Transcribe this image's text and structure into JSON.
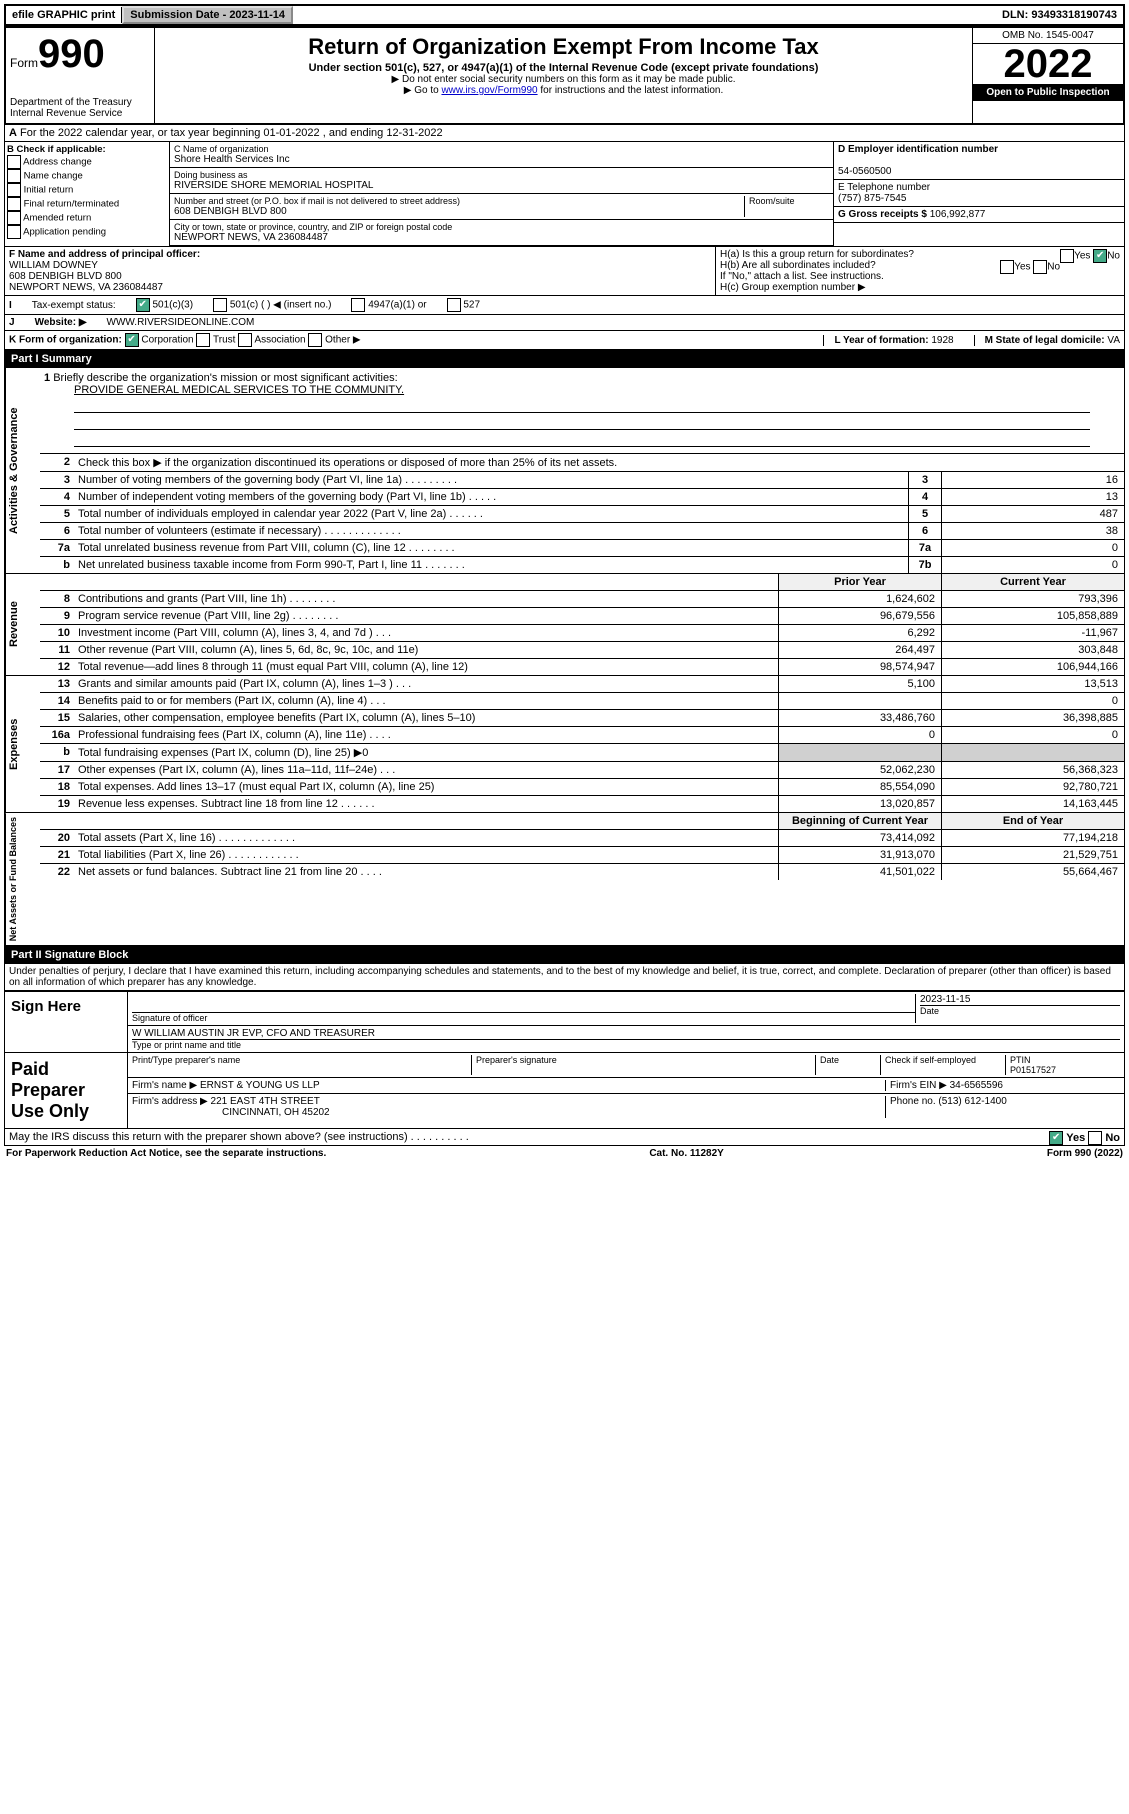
{
  "topbar": {
    "efile": "efile GRAPHIC print",
    "sub_date_label": "Submission Date - 2023-11-14",
    "dln": "DLN: 93493318190743"
  },
  "header": {
    "form_label": "Form",
    "form_num": "990",
    "dept": "Department of the Treasury",
    "irs": "Internal Revenue Service",
    "title": "Return of Organization Exempt From Income Tax",
    "subtitle": "Under section 501(c), 527, or 4947(a)(1) of the Internal Revenue Code (except private foundations)",
    "note1": "▶ Do not enter social security numbers on this form as it may be made public.",
    "note2_pre": "▶ Go to ",
    "note2_link": "www.irs.gov/Form990",
    "note2_post": " for instructions and the latest information.",
    "omb": "OMB No. 1545-0047",
    "year": "2022",
    "open": "Open to Public Inspection"
  },
  "period": "For the 2022 calendar year, or tax year beginning 01-01-2022   , and ending 12-31-2022",
  "B": {
    "label": "B Check if applicable:",
    "items": [
      "Address change",
      "Name change",
      "Initial return",
      "Final return/terminated",
      "Amended return",
      "Application pending"
    ]
  },
  "C": {
    "name_label": "C Name of organization",
    "name": "Shore Health Services Inc",
    "dba_label": "Doing business as",
    "dba": "RIVERSIDE SHORE MEMORIAL HOSPITAL",
    "addr_label": "Number and street (or P.O. box if mail is not delivered to street address)",
    "addr": "608 DENBIGH BLVD 800",
    "room_label": "Room/suite",
    "city_label": "City or town, state or province, country, and ZIP or foreign postal code",
    "city": "NEWPORT NEWS, VA  236084487"
  },
  "D": {
    "label": "D Employer identification number",
    "value": "54-0560500"
  },
  "E": {
    "label": "E Telephone number",
    "value": "(757) 875-7545"
  },
  "G": {
    "label": "G Gross receipts $",
    "value": "106,992,877"
  },
  "F": {
    "label": "F Name and address of principal officer:",
    "name": "WILLIAM DOWNEY",
    "addr1": "608 DENBIGH BLVD 800",
    "addr2": "NEWPORT NEWS, VA  236084487"
  },
  "H": {
    "a": "H(a)  Is this a group return for subordinates?",
    "a_yes": "Yes",
    "a_no": "No",
    "b": "H(b)  Are all subordinates included?",
    "b_yes": "Yes",
    "b_no": "No",
    "b_note": "If \"No,\" attach a list. See instructions.",
    "c": "H(c)  Group exemption number ▶"
  },
  "I": {
    "label": "Tax-exempt status:",
    "opt1": "501(c)(3)",
    "opt2": "501(c) (  ) ◀ (insert no.)",
    "opt3": "4947(a)(1) or",
    "opt4": "527"
  },
  "J": {
    "label": "Website: ▶",
    "value": "WWW.RIVERSIDEONLINE.COM"
  },
  "K": {
    "label": "K Form of organization:",
    "opts": [
      "Corporation",
      "Trust",
      "Association",
      "Other ▶"
    ]
  },
  "L": {
    "label": "L Year of formation:",
    "value": "1928"
  },
  "M": {
    "label": "M State of legal domicile:",
    "value": "VA"
  },
  "partI": {
    "header": "Part I     Summary",
    "q1": "Briefly describe the organization's mission or most significant activities:",
    "mission": "PROVIDE GENERAL MEDICAL SERVICES TO THE COMMUNITY.",
    "q2": "Check this box ▶      if the organization discontinued its operations or disposed of more than 25% of its net assets.",
    "sides": {
      "gov": "Activities & Governance",
      "rev": "Revenue",
      "exp": "Expenses",
      "net": "Net Assets or Fund Balances"
    },
    "single_col": [
      {
        "n": "3",
        "d": "Number of voting members of the governing body (Part VI, line 1a)   .    .    .    .    .    .    .    .    .",
        "b": "3",
        "v": "16"
      },
      {
        "n": "4",
        "d": "Number of independent voting members of the governing body (Part VI, line 1b)  .    .    .    .    .",
        "b": "4",
        "v": "13"
      },
      {
        "n": "5",
        "d": "Total number of individuals employed in calendar year 2022 (Part V, line 2a)   .    .    .    .    .    .",
        "b": "5",
        "v": "487"
      },
      {
        "n": "6",
        "d": "Total number of volunteers (estimate if necessary)   .    .    .    .    .    .    .    .    .    .    .    .    .",
        "b": "6",
        "v": "38"
      },
      {
        "n": "7a",
        "d": "Total unrelated business revenue from Part VIII, column (C), line 12  .    .    .    .    .    .    .    .",
        "b": "7a",
        "v": "0"
      },
      {
        "n": "b",
        "d": "Net unrelated business taxable income from Form 990-T, Part I, line 11   .    .    .    .    .    .    .",
        "b": "7b",
        "v": "0"
      }
    ],
    "hdr_prior": "Prior Year",
    "hdr_curr": "Current Year",
    "rev": [
      {
        "n": "8",
        "d": "Contributions and grants (Part VIII, line 1h)   .    .    .    .    .    .    .    .",
        "p": "1,624,602",
        "c": "793,396"
      },
      {
        "n": "9",
        "d": "Program service revenue (Part VIII, line 2g)   .    .    .    .    .    .    .    .",
        "p": "96,679,556",
        "c": "105,858,889"
      },
      {
        "n": "10",
        "d": "Investment income (Part VIII, column (A), lines 3, 4, and 7d )  .    .    .",
        "p": "6,292",
        "c": "-11,967"
      },
      {
        "n": "11",
        "d": "Other revenue (Part VIII, column (A), lines 5, 6d, 8c, 9c, 10c, and 11e)",
        "p": "264,497",
        "c": "303,848"
      },
      {
        "n": "12",
        "d": "Total revenue—add lines 8 through 11 (must equal Part VIII, column (A), line 12)",
        "p": "98,574,947",
        "c": "106,944,166"
      }
    ],
    "exp": [
      {
        "n": "13",
        "d": "Grants and similar amounts paid (Part IX, column (A), lines 1–3 )  .    .    .",
        "p": "5,100",
        "c": "13,513"
      },
      {
        "n": "14",
        "d": "Benefits paid to or for members (Part IX, column (A), line 4)  .    .    .",
        "p": "",
        "c": "0"
      },
      {
        "n": "15",
        "d": "Salaries, other compensation, employee benefits (Part IX, column (A), lines 5–10)",
        "p": "33,486,760",
        "c": "36,398,885"
      },
      {
        "n": "16a",
        "d": "Professional fundraising fees (Part IX, column (A), line 11e)  .    .    .    .",
        "p": "0",
        "c": "0"
      },
      {
        "n": "b",
        "d": "Total fundraising expenses (Part IX, column (D), line 25) ▶0",
        "p": "GRAY",
        "c": "GRAY"
      },
      {
        "n": "17",
        "d": "Other expenses (Part IX, column (A), lines 11a–11d, 11f–24e)  .    .    .",
        "p": "52,062,230",
        "c": "56,368,323"
      },
      {
        "n": "18",
        "d": "Total expenses. Add lines 13–17 (must equal Part IX, column (A), line 25)",
        "p": "85,554,090",
        "c": "92,780,721"
      },
      {
        "n": "19",
        "d": "Revenue less expenses. Subtract line 18 from line 12   .    .    .    .    .    .",
        "p": "13,020,857",
        "c": "14,163,445"
      }
    ],
    "hdr_beg": "Beginning of Current Year",
    "hdr_end": "End of Year",
    "net": [
      {
        "n": "20",
        "d": "Total assets (Part X, line 16)  .    .    .    .    .    .    .    .    .    .    .    .    .",
        "p": "73,414,092",
        "c": "77,194,218"
      },
      {
        "n": "21",
        "d": "Total liabilities (Part X, line 26)  .    .    .    .    .    .    .    .    .    .    .    .",
        "p": "31,913,070",
        "c": "21,529,751"
      },
      {
        "n": "22",
        "d": "Net assets or fund balances. Subtract line 21 from line 20  .    .    .    .",
        "p": "41,501,022",
        "c": "55,664,467"
      }
    ]
  },
  "partII": {
    "header": "Part II     Signature Block",
    "perjury": "Under penalties of perjury, I declare that I have examined this return, including accompanying schedules and statements, and to the best of my knowledge and belief, it is true, correct, and complete. Declaration of preparer (other than officer) is based on all information of which preparer has any knowledge.",
    "sign_here": "Sign Here",
    "sig_of_officer": "Signature of officer",
    "sig_date": "2023-11-15",
    "date_label": "Date",
    "officer_name": "W WILLIAM AUSTIN JR EVP, CFO AND TREASURER",
    "type_label": "Type or print name and title",
    "paid": "Paid Preparer Use Only",
    "prep_name_label": "Print/Type preparer's name",
    "prep_sig_label": "Preparer's signature",
    "check_if": "Check      if self-employed",
    "ptin_label": "PTIN",
    "ptin": "P01517527",
    "firm_name_label": "Firm's name    ▶",
    "firm_name": "ERNST & YOUNG US LLP",
    "firm_ein_label": "Firm's EIN ▶",
    "firm_ein": "34-6565596",
    "firm_addr_label": "Firm's address ▶",
    "firm_addr1": "221 EAST 4TH STREET",
    "firm_addr2": "CINCINNATI, OH  45202",
    "phone_label": "Phone no.",
    "phone": "(513) 612-1400",
    "discuss": "May the IRS discuss this return with the preparer shown above? (see instructions)   .    .    .    .    .    .    .    .    .    .",
    "discuss_yes": "Yes",
    "discuss_no": "No"
  },
  "footer": {
    "left": "For Paperwork Reduction Act Notice, see the separate instructions.",
    "mid": "Cat. No. 11282Y",
    "right": "Form 990 (2022)"
  }
}
